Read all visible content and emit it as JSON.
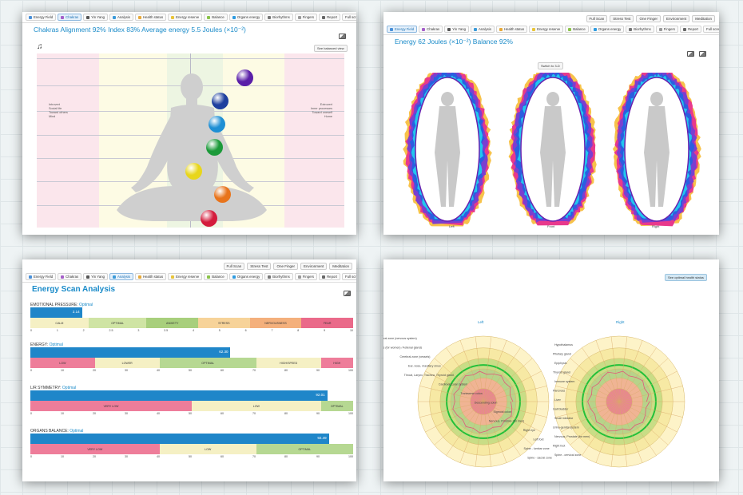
{
  "tabs": [
    {
      "label": "Energy Field",
      "color": "#4a90d9"
    },
    {
      "label": "Chakras",
      "color": "#a55fc9"
    },
    {
      "label": "Yin Yang",
      "color": "#555555"
    },
    {
      "label": "Analysis",
      "color": "#3b9ad9"
    },
    {
      "label": "Health status",
      "color": "#e7a93a"
    },
    {
      "label": "Energy reserve",
      "color": "#e8c43a"
    },
    {
      "label": "Balance",
      "color": "#8bc34a"
    },
    {
      "label": "Organs energy",
      "color": "#2e9be0"
    },
    {
      "label": "Biorhythms",
      "color": "#777777"
    },
    {
      "label": "Fingers",
      "color": "#9a9a9a"
    },
    {
      "label": "Report",
      "color": "#666666"
    }
  ],
  "fullscreen_label": "Full screen",
  "topbar": [
    "Full Scan",
    "Stress Test",
    "One Finger",
    "Environment",
    "Meditation"
  ],
  "chakras": {
    "title": "Chakras Alignment 92% Index 83% Average energy 5.5 Joules (×10⁻²)",
    "button": "See balanced view",
    "left_labels": [
      "Introvert",
      "Social life",
      "Toward others",
      "Mind"
    ],
    "right_labels": [
      "Extrovert",
      "Inner processes",
      "Toward oneself",
      "Home"
    ],
    "balls": [
      {
        "color": "#5a1fa8"
      },
      {
        "color": "#1e3f9e"
      },
      {
        "color": "#1f8fd4"
      },
      {
        "color": "#1c9a3a"
      },
      {
        "color": "#e8d61c"
      },
      {
        "color": "#e8741c"
      },
      {
        "color": "#d41c3c"
      }
    ]
  },
  "energy_field": {
    "title": "Energy 62 Joules (×10⁻²) Balance 92%",
    "switch_label": "Switch to 3-D",
    "views": [
      "Left",
      "Front",
      "Right"
    ]
  },
  "analysis": {
    "title": "Energy Scan Analysis",
    "sections": [
      {
        "label": "EMOTIONAL PRESSURE:",
        "status": "Optimal",
        "value": "2.14",
        "fill": 0.16,
        "zones": [
          {
            "name": "CALM",
            "color": "#f5f0c4",
            "w": 18
          },
          {
            "name": "OPTIMAL",
            "color": "#cfe4a4",
            "w": 18
          },
          {
            "name": "ANXIETY",
            "color": "#a8cf7c",
            "w": 16
          },
          {
            "name": "STRESS",
            "color": "#f7d399",
            "w": 16
          },
          {
            "name": "NERVOUSNESS",
            "color": "#f4b07c",
            "w": 16
          },
          {
            "name": "FEAR",
            "color": "#ea6a8a",
            "w": 16
          }
        ],
        "ticks": [
          "0",
          "1",
          "2",
          "2.5",
          "3",
          "3.5",
          "4",
          "5",
          "6",
          "7",
          "8",
          "9",
          "10"
        ]
      },
      {
        "label": "ENERGY:",
        "status": "Optimal",
        "value": "62.30",
        "fill": 0.62,
        "zones": [
          {
            "name": "LOW",
            "color": "#ee7d9a",
            "w": 20
          },
          {
            "name": "LOWER",
            "color": "#f5f0c4",
            "w": 20
          },
          {
            "name": "OPTIMAL",
            "color": "#b6d892",
            "w": 30
          },
          {
            "name": "HIGH/SPEED",
            "color": "#f5f0c4",
            "w": 20
          },
          {
            "name": "HIGH",
            "color": "#ee7d9a",
            "w": 10
          }
        ],
        "ticks": [
          "0",
          "10",
          "20",
          "30",
          "40",
          "50",
          "60",
          "70",
          "80",
          "90",
          "100"
        ]
      },
      {
        "label": "L/R SYMMETRY:",
        "status": "Optimal",
        "value": "92.01",
        "fill": 0.92,
        "zones": [
          {
            "name": "VERY LOW",
            "color": "#ee7d9a",
            "w": 50
          },
          {
            "name": "LOW",
            "color": "#f5f0c4",
            "w": 40
          },
          {
            "name": "OPTIMAL",
            "color": "#b6d892",
            "w": 10
          }
        ],
        "ticks": [
          "0",
          "10",
          "20",
          "30",
          "40",
          "50",
          "60",
          "70",
          "80",
          "90",
          "100"
        ]
      },
      {
        "label": "ORGANS BALANCE:",
        "status": "Optimal",
        "value": "92.49",
        "fill": 0.925,
        "zones": [
          {
            "name": "VERY LOW",
            "color": "#ee7d9a",
            "w": 40
          },
          {
            "name": "LOW",
            "color": "#f5f0c4",
            "w": 30
          },
          {
            "name": "OPTIMAL",
            "color": "#b6d892",
            "w": 30
          }
        ],
        "ticks": [
          "0",
          "10",
          "20",
          "30",
          "40",
          "50",
          "60",
          "70",
          "80",
          "90",
          "100"
        ]
      }
    ]
  },
  "organs": {
    "button": "See optimal health status",
    "charts": [
      "Left",
      "Right"
    ],
    "labels_left": [
      "Cerebral zone (nervous system)",
      "Hormones glands (for women) / Adrenal glands",
      "Cerebral zone (vessels)",
      "Ear, nose, maxillary sinus",
      "Throat, Larynx, Trachea, Thyroid gland",
      "Cardiovascular system",
      "Transverse colon",
      "Descending colon",
      "Sigmoid colon",
      "Nervous, Prostate (for men)",
      "Right eye",
      "Left foot",
      "Spine - lumbar zone",
      "Spine - sacral zone"
    ],
    "labels_right": [
      "Hypothalamus",
      "Pituitary gland",
      "Epiphysis",
      "Thyroid gland",
      "Immune system",
      "Pancreas",
      "Liver",
      "Gall bladder",
      "Small intestine",
      "Urino-genital system",
      "Nervous, Prostate (for men)",
      "Right foot",
      "Spine - cervical zone"
    ]
  }
}
